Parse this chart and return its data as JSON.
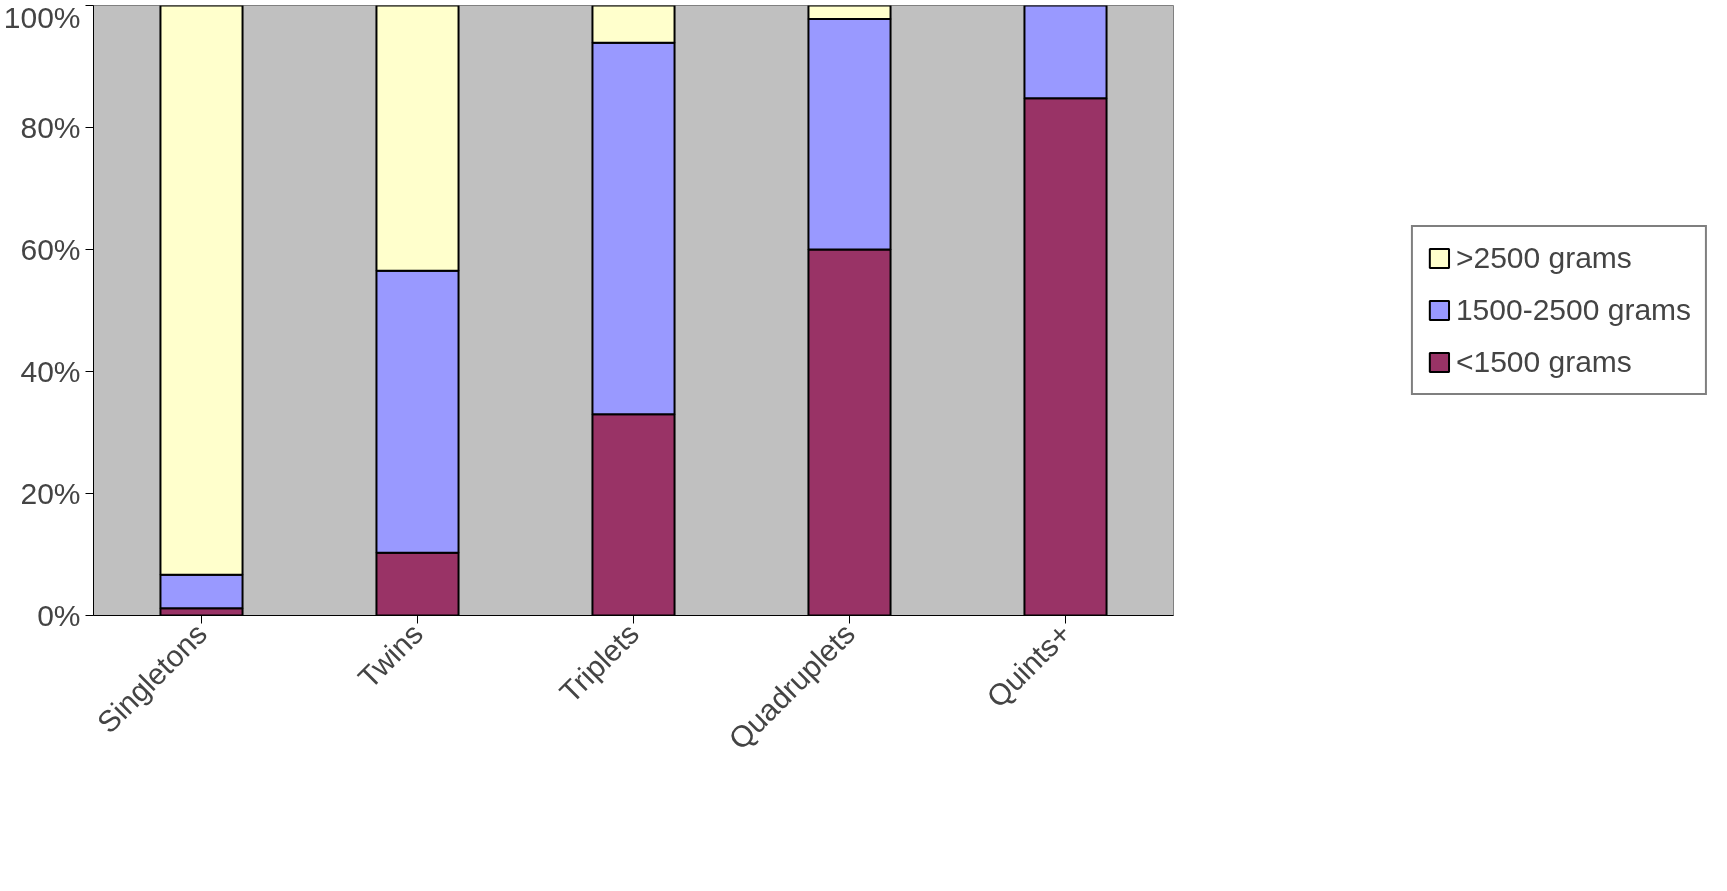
{
  "chart_data": {
    "type": "bar",
    "stacked": true,
    "categories": [
      "Singletons",
      "Twins",
      "Triplets",
      "Quadruplets",
      "Quints+"
    ],
    "series": [
      {
        "name": "<1500 grams",
        "color": "#993366",
        "values": [
          1.2,
          10.3,
          33,
          60,
          84.8
        ]
      },
      {
        "name": "1500-2500 grams",
        "color": "#9999ff",
        "values": [
          5.5,
          46.2,
          60.9,
          37.8,
          15.2
        ]
      },
      {
        "name": ">2500 grams",
        "color": "#ffffcc",
        "values": [
          93.3,
          43.5,
          6.1,
          2.2,
          null
        ]
      }
    ],
    "ylim": [
      0,
      100
    ],
    "yticks": [
      {
        "value": 0,
        "label": "0%"
      },
      {
        "value": 20,
        "label": "20%"
      },
      {
        "value": 40,
        "label": "40%"
      },
      {
        "value": 60,
        "label": "60%"
      },
      {
        "value": 80,
        "label": "80%"
      },
      {
        "value": 100,
        "label": "100%"
      }
    ],
    "grid": false,
    "legend": "right"
  }
}
